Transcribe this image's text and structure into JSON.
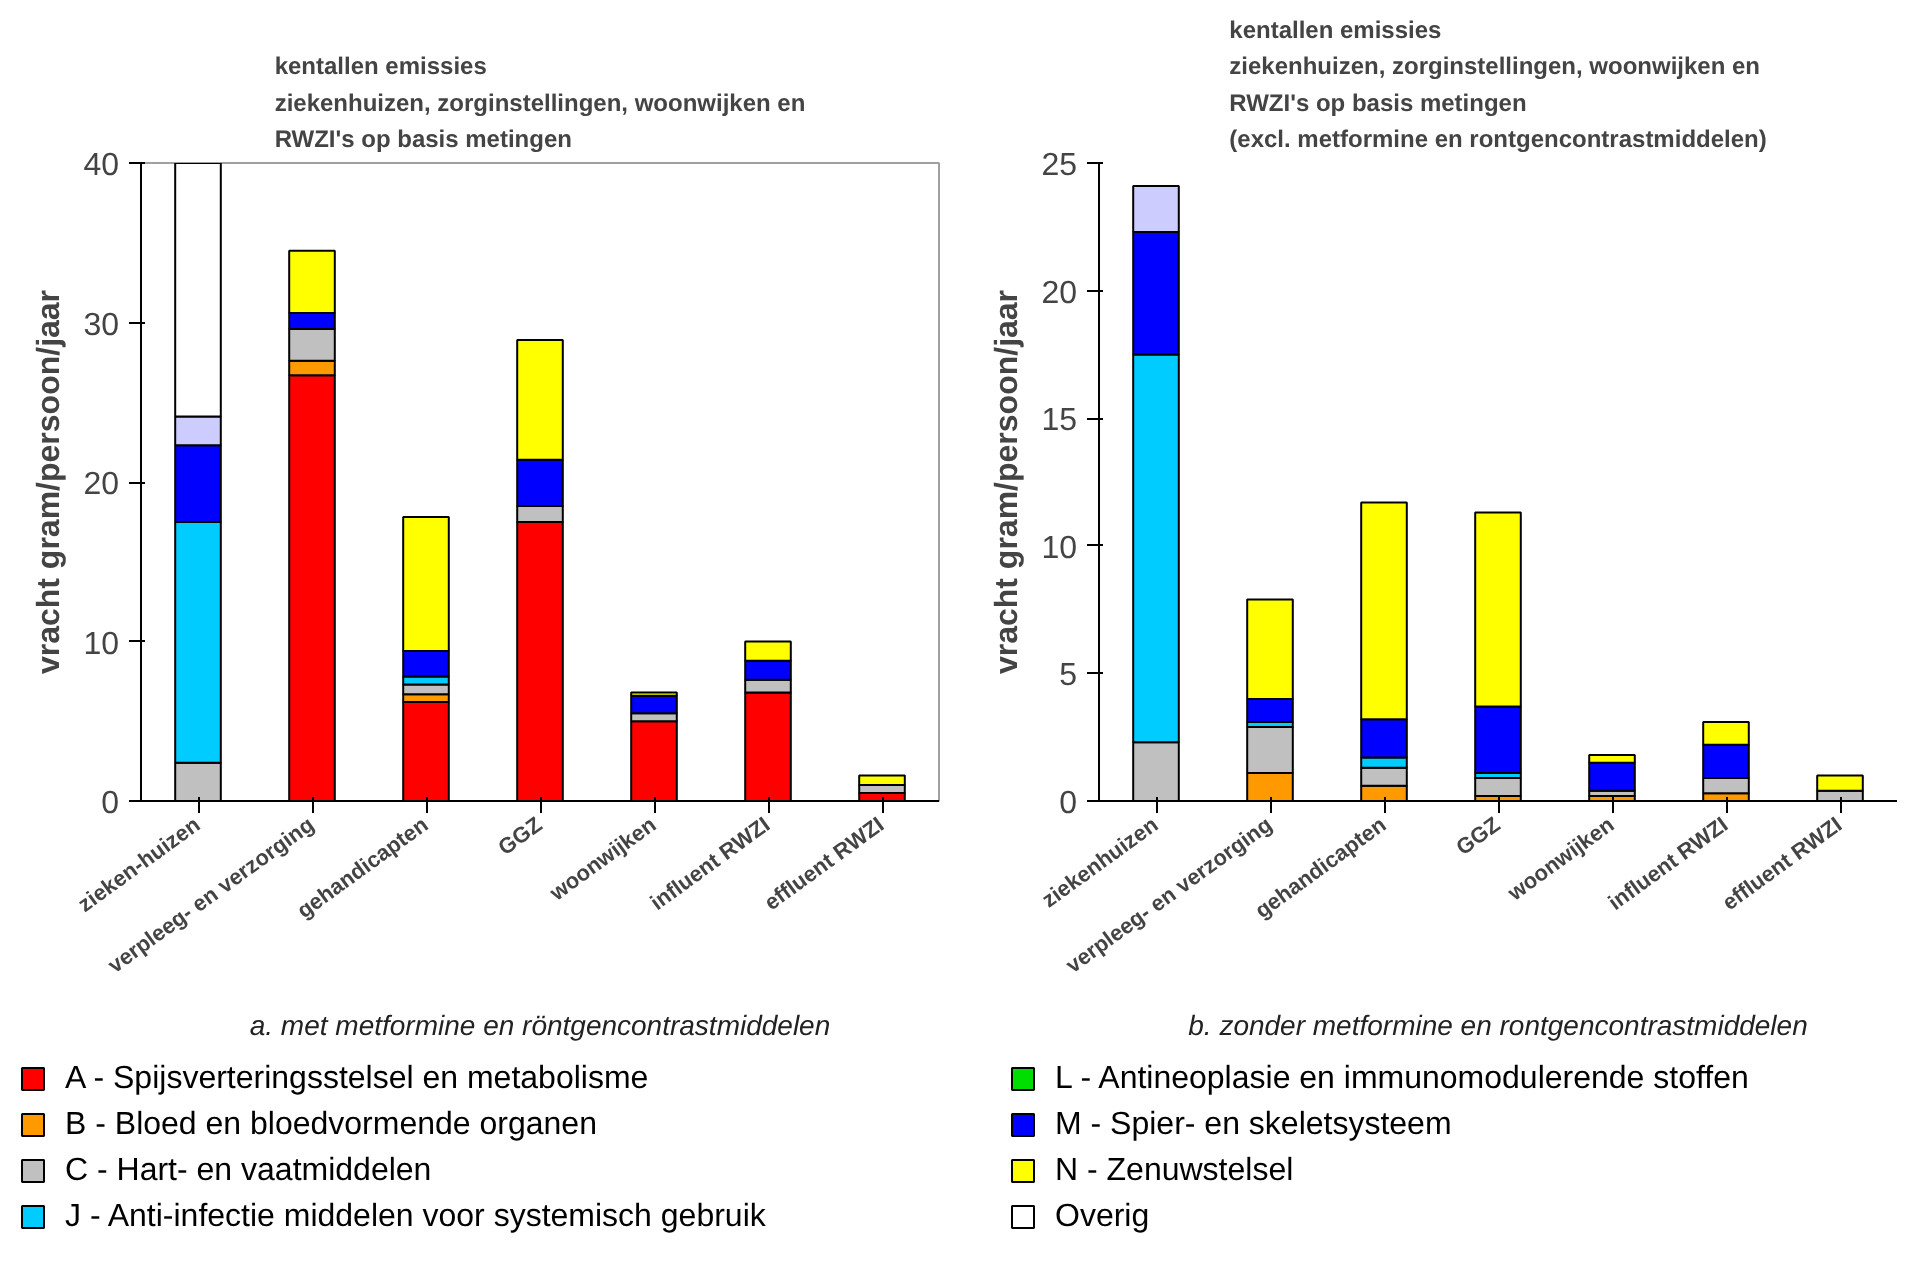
{
  "chart_data": [
    {
      "type": "bar",
      "stacked": true,
      "title": "kentallen emissies\nziekenhuizen, zorginstellingen, woonwijken en\nRWZI's op basis metingen",
      "ylabel": "vracht gram/persoon/jaar",
      "annotations": [
        "a. met metformine en röntgencontrastmiddelen"
      ],
      "categories": [
        "zieken-huizen",
        "verpleeg- en verzorging",
        "gehandicapten",
        "GGZ",
        "woonwijken",
        "influent RWZI",
        "effluent RWZI"
      ],
      "ylim": [
        0,
        40
      ],
      "yticks": [
        0,
        10,
        20,
        30,
        40
      ],
      "grid": false,
      "legend": "bottom",
      "series": [
        {
          "name": "A - Spijsverteringsstelsel en metabolisme",
          "color": "#ff0000",
          "values": [
            null,
            26.7,
            6.2,
            17.5,
            5.0,
            6.8,
            0.5
          ]
        },
        {
          "name": "B - Bloed en bloedvormende organen",
          "color": "#ff9900",
          "values": [
            null,
            0.9,
            0.5,
            null,
            null,
            null,
            null
          ]
        },
        {
          "name": "C - Hart- en vaatmiddelen",
          "color": "#c0c0c0",
          "values": [
            2.4,
            2.0,
            0.6,
            1.0,
            0.5,
            0.8,
            0.5
          ]
        },
        {
          "name": "J - Anti-infectie middelen voor systemisch gebruik",
          "color": "#00ccff",
          "values": [
            15.1,
            null,
            0.5,
            null,
            null,
            null,
            null
          ]
        },
        {
          "name": "L - Antineoplasie en immunomodulerende stoffen",
          "color": "#00dd00",
          "values": [
            null,
            null,
            null,
            null,
            null,
            null,
            null
          ]
        },
        {
          "name": "M - Spier- en skeletsysteem",
          "color": "#0000ff",
          "values": [
            4.8,
            1.0,
            1.6,
            2.9,
            1.1,
            1.2,
            null
          ]
        },
        {
          "name": "N - Zenuwstelsel",
          "color": "#ffff00",
          "values": [
            null,
            3.9,
            8.4,
            7.5,
            0.2,
            1.2,
            0.6
          ]
        },
        {
          "color": "#ccccff",
          "values": [
            1.8,
            null,
            null,
            null,
            null,
            null,
            null
          ]
        },
        {
          "name": "Overig",
          "color": "#ffffff",
          "values": [
            15.9,
            null,
            null,
            null,
            null,
            null,
            null
          ]
        }
      ]
    },
    {
      "type": "bar",
      "stacked": true,
      "title": "kentallen emissies\nziekenhuizen, zorginstellingen, woonwijken en\nRWZI's op basis metingen\n(excl. metformine en rontgencontrastmiddelen)",
      "ylabel": "vracht gram/persoon/jaar",
      "annotations": [
        "b. zonder metformine en rontgencontrastmiddelen"
      ],
      "categories": [
        "ziekenhuizen",
        "verpleeg- en verzorging",
        "gehandicapten",
        "GGZ",
        "woonwijken",
        "influent RWZI",
        "effluent RWZI"
      ],
      "ylim": [
        0,
        25
      ],
      "yticks": [
        0,
        5,
        10,
        15,
        20,
        25
      ],
      "grid": false,
      "series": [
        {
          "color": "#ff9900",
          "values": [
            null,
            1.1,
            0.6,
            0.2,
            0.2,
            0.3,
            null
          ]
        },
        {
          "color": "#c0c0c0",
          "values": [
            2.3,
            1.8,
            0.7,
            0.7,
            0.2,
            0.6,
            0.4
          ]
        },
        {
          "color": "#00ccff",
          "values": [
            15.2,
            0.2,
            0.4,
            0.2,
            null,
            null,
            null
          ]
        },
        {
          "color": "#0000ff",
          "values": [
            4.8,
            0.9,
            1.5,
            2.6,
            1.1,
            1.3,
            null
          ]
        },
        {
          "color": "#ffff00",
          "values": [
            null,
            3.9,
            8.5,
            7.6,
            0.3,
            0.9,
            0.6
          ]
        },
        {
          "color": "#ccccff",
          "values": [
            1.8,
            null,
            null,
            null,
            null,
            null,
            null
          ]
        }
      ]
    }
  ]
}
